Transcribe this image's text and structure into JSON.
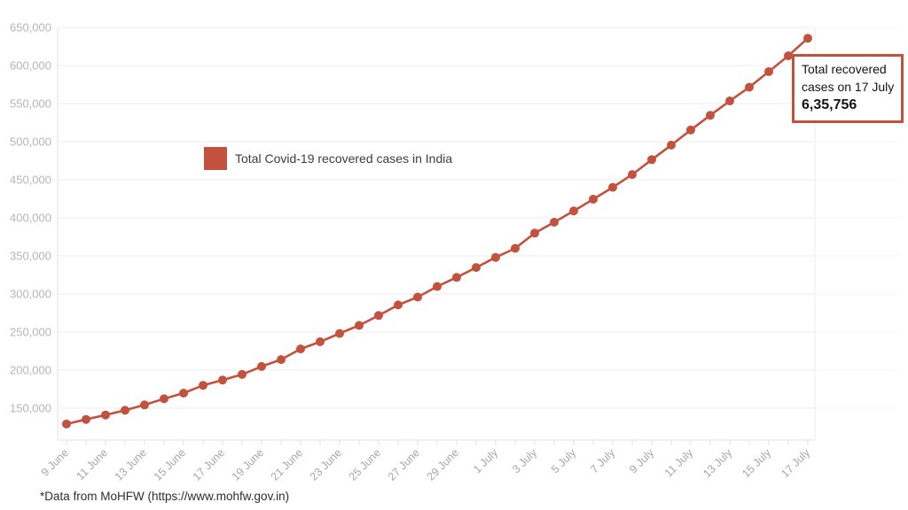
{
  "colors": {
    "accent": "#c2523e",
    "grid": "#ececec",
    "grid_faint": "#f6f6f6",
    "axis": "#e2e2e2",
    "y_tick_text": "#b5b5b5",
    "x_tick_text": "#a6a6a6",
    "background": "#ffffff"
  },
  "footer": {
    "text": "*Data from MoHFW (https://www.mohfw.gov.in)"
  },
  "chart_data": {
    "type": "line",
    "title": "",
    "xlabel": "",
    "ylabel": "",
    "grid": true,
    "marker": "circle",
    "legend_position": "inside-top-left",
    "ylim": [
      110000,
      650000
    ],
    "yticks": [
      150000,
      200000,
      250000,
      300000,
      350000,
      400000,
      450000,
      500000,
      550000,
      600000,
      650000
    ],
    "ytick_format": "comma",
    "x_tick_step": 2,
    "categories": [
      "9 June",
      "10 June",
      "11 June",
      "12 June",
      "13 June",
      "14 June",
      "15 June",
      "16 June",
      "17 June",
      "18 June",
      "19 June",
      "20 June",
      "21 June",
      "22 June",
      "23 June",
      "24 June",
      "25 June",
      "26 June",
      "27 June",
      "28 June",
      "29 June",
      "30 June",
      "1 July",
      "2 July",
      "3 July",
      "4 July",
      "5 July",
      "6 July",
      "7 July",
      "8 July",
      "9 July",
      "10 July",
      "11 July",
      "12 July",
      "13 July",
      "14 July",
      "15 July",
      "16 July",
      "17 July"
    ],
    "series": [
      {
        "name": "Total Covid-19 recovered cases in India",
        "color": "#c2523e",
        "values": [
          129215,
          135206,
          141029,
          147195,
          154330,
          162379,
          169798,
          180013,
          186935,
          194325,
          204711,
          213831,
          227756,
          237196,
          248190,
          258685,
          271697,
          285637,
          295881,
          309713,
          321723,
          334822,
          347979,
          359860,
          379892,
          394227,
          409083,
          424433,
          439948,
          456831,
          476378,
          495513,
          515386,
          534621,
          553471,
          571460,
          592032,
          612815,
          635756
        ]
      }
    ],
    "annotation": {
      "date": "17 July",
      "numeric_value": 635756,
      "lines": [
        "Total recovered",
        "cases on 17 July"
      ],
      "value": "6,35,756"
    }
  }
}
